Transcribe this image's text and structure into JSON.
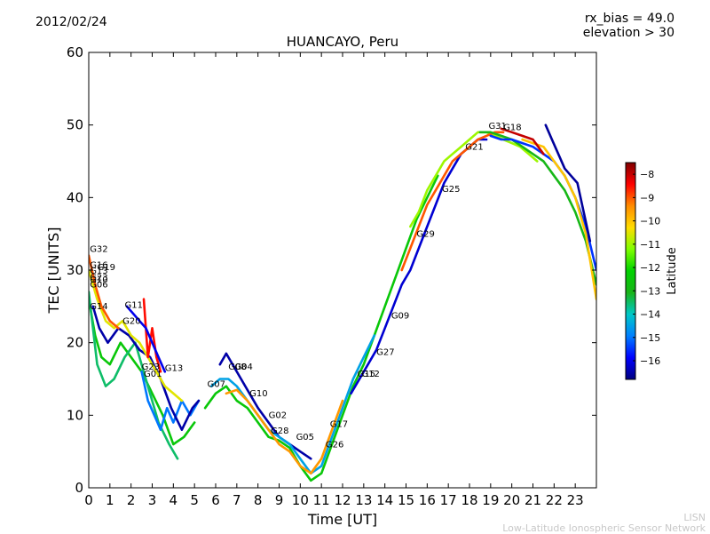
{
  "header": {
    "date": "2012/02/24",
    "rx_bias": "rx_bias = 49.0",
    "elevation": "elevation > 30"
  },
  "footer": {
    "line1": "LISN",
    "line2": "Low-Latitude Ionospheric Sensor Network"
  },
  "chart_data": {
    "type": "scatter",
    "title": "HUANCAYO, Peru",
    "xlabel": "Time [UT]",
    "ylabel": "TEC [UNITS]",
    "xlim": [
      0,
      24
    ],
    "ylim": [
      0,
      60
    ],
    "xticks": [
      "0",
      "1",
      "2",
      "3",
      "4",
      "5",
      "6",
      "7",
      "8",
      "9",
      "10",
      "11",
      "12",
      "13",
      "14",
      "15",
      "16",
      "17",
      "18",
      "19",
      "20",
      "21",
      "22",
      "23"
    ],
    "yticks": [
      "0",
      "10",
      "20",
      "30",
      "40",
      "50",
      "60"
    ],
    "colorbar": {
      "label": "Latitude",
      "range": [
        -16.8,
        -7.5
      ],
      "ticks": [
        "-8",
        "-9",
        "-10",
        "-11",
        "-12",
        "-13",
        "-14",
        "-15",
        "-16"
      ],
      "tick_values": [
        -8,
        -9,
        -10,
        -11,
        -12,
        -13,
        -14,
        -15,
        -16
      ],
      "colors": [
        "#00007f",
        "#0000ff",
        "#007fff",
        "#00c8c8",
        "#19b419",
        "#00d200",
        "#7fff00",
        "#ffdd00",
        "#ff8c00",
        "#ff0000",
        "#7f0000"
      ]
    },
    "series": [
      {
        "lat": -12.5,
        "x": [
          0,
          0.3,
          0.6,
          1.0,
          1.5,
          2.0,
          2.5,
          3.0,
          3.5,
          4.0,
          4.5,
          5.0
        ],
        "y": [
          26,
          21,
          18,
          17,
          20,
          18,
          16,
          13,
          10,
          6,
          7,
          9
        ]
      },
      {
        "lat": -13.5,
        "x": [
          0,
          0.4,
          0.8,
          1.2,
          1.7,
          2.2,
          2.8,
          3.3,
          3.8,
          4.2
        ],
        "y": [
          27,
          17,
          14,
          15,
          18,
          20,
          14,
          9,
          6,
          4
        ]
      },
      {
        "lat": -15.0,
        "x": [
          2.5,
          2.8,
          3.1,
          3.4,
          3.7,
          4.0,
          4.4,
          4.8,
          5.2
        ],
        "y": [
          16,
          12,
          10,
          8,
          11,
          9,
          12,
          10,
          12
        ]
      },
      {
        "lat": -16.5,
        "x": [
          0.2,
          0.5,
          0.9,
          1.4,
          1.9,
          2.4,
          2.9,
          3.4,
          3.9,
          4.4,
          4.9,
          5.2
        ],
        "y": [
          25,
          22,
          20,
          22,
          21,
          19,
          18,
          15,
          11,
          8,
          11,
          12
        ]
      },
      {
        "lat": -10.5,
        "x": [
          0,
          0.4,
          0.8,
          1.2,
          1.6,
          2.0,
          2.4,
          2.8,
          3.2,
          3.6,
          4.0,
          4.4
        ],
        "y": [
          30,
          26,
          23,
          22,
          23,
          21,
          20,
          18,
          16,
          14,
          13,
          12
        ]
      },
      {
        "lat": -8.5,
        "x": [
          2.6,
          2.8,
          3.0,
          3.2,
          3.4
        ],
        "y": [
          26,
          18,
          22,
          18,
          16
        ]
      },
      {
        "lat": -9.0,
        "x": [
          0,
          0.3,
          0.6,
          1.0,
          1.4
        ],
        "y": [
          32,
          28,
          25,
          23,
          22
        ]
      },
      {
        "lat": -16.0,
        "x": [
          1.8,
          2.1,
          2.4,
          2.7,
          3.0,
          3.3,
          3.6
        ],
        "y": [
          25,
          24,
          23,
          22,
          20,
          18,
          16
        ]
      },
      {
        "lat": -12.5,
        "x": [
          5.5,
          6.0,
          6.5,
          7.0,
          7.5,
          8.0,
          8.5,
          9.0,
          9.5,
          10.0,
          10.5,
          11.0,
          11.5,
          12.0,
          12.5,
          13.0,
          13.5,
          14.0,
          14.5,
          15.0,
          15.5,
          16.0,
          16.5
        ],
        "y": [
          11,
          13,
          14,
          12,
          11,
          9,
          7,
          6.5,
          5.5,
          3,
          1,
          2,
          6,
          10,
          14,
          17,
          21,
          25,
          29,
          33,
          37,
          40,
          43
        ]
      },
      {
        "lat": -16.5,
        "x": [
          6.2,
          6.5,
          6.8,
          7.2,
          7.6,
          8.0,
          8.5,
          9.0,
          9.5,
          10.0,
          10.5
        ],
        "y": [
          17,
          18.5,
          17,
          15,
          13,
          11,
          9,
          7,
          6,
          5,
          4
        ]
      },
      {
        "lat": -14.5,
        "x": [
          5.8,
          6.2,
          6.6,
          7.0,
          7.5,
          8.0,
          8.5,
          9.0,
          9.5,
          10.0,
          10.5,
          11.0,
          11.5,
          12.0,
          12.5,
          13.0,
          13.5
        ],
        "y": [
          14,
          15,
          15,
          14,
          12,
          10,
          8,
          7,
          6,
          4,
          2,
          3,
          7,
          11,
          15,
          18,
          21
        ]
      },
      {
        "lat": -9.5,
        "x": [
          6.5,
          7.0,
          7.5,
          8.0,
          8.5,
          9.0,
          9.5,
          10.0,
          10.5,
          11.0,
          11.5,
          12.0
        ],
        "y": [
          13,
          13.5,
          12,
          10,
          8,
          6,
          5,
          3,
          2,
          4,
          8,
          12
        ]
      },
      {
        "lat": -11.0,
        "x": [
          15.2,
          15.6,
          16.0,
          16.4,
          16.8,
          17.2,
          17.6,
          18.0,
          18.4,
          18.8,
          19.2,
          19.6,
          20.0,
          20.4,
          20.8,
          21.2
        ],
        "y": [
          36,
          38,
          41,
          43,
          45,
          46,
          47,
          48,
          49,
          49,
          48.5,
          48,
          47.5,
          47,
          46,
          45
        ]
      },
      {
        "lat": -16.2,
        "x": [
          12.4,
          12.8,
          13.2,
          13.6,
          14.0,
          14.4,
          14.8,
          15.2,
          15.6,
          16.0,
          16.4,
          16.8,
          17.2,
          17.6,
          18.0,
          18.4,
          18.8
        ],
        "y": [
          13,
          15,
          17,
          19,
          22,
          25,
          28,
          30,
          33,
          36,
          39,
          42,
          44,
          46,
          47,
          48,
          48
        ]
      },
      {
        "lat": -9.0,
        "x": [
          14.8,
          15.2,
          15.6,
          16.0,
          16.4,
          16.8,
          17.2,
          17.6,
          18.0,
          18.4,
          18.8,
          19.2,
          19.6
        ],
        "y": [
          30,
          33,
          36,
          39,
          41,
          43,
          45,
          46,
          47,
          48,
          48.5,
          49,
          49
        ]
      },
      {
        "lat": -13.0,
        "x": [
          18.5,
          19.0,
          19.5,
          20.0,
          20.5,
          21.0,
          21.5,
          22.0,
          22.5,
          23.0,
          23.5,
          24.0
        ],
        "y": [
          49,
          49,
          48.5,
          48,
          47,
          46,
          45,
          43,
          41,
          38,
          34,
          28
        ]
      },
      {
        "lat": -15.5,
        "x": [
          19.0,
          19.5,
          20.0,
          20.5,
          21.0,
          21.5,
          22.0,
          22.5,
          23.0,
          23.5,
          24.0
        ],
        "y": [
          48.5,
          48,
          48,
          47.5,
          47,
          46,
          45,
          43,
          40,
          36,
          30
        ]
      },
      {
        "lat": -10.0,
        "x": [
          20.5,
          21.0,
          21.5,
          22.0,
          22.5,
          23.0,
          23.5,
          24.0
        ],
        "y": [
          48,
          47.5,
          47,
          45,
          43,
          40,
          35,
          26
        ]
      },
      {
        "lat": -16.6,
        "x": [
          21.6,
          21.9,
          22.2,
          22.5,
          22.8,
          23.1,
          23.4,
          23.7
        ],
        "y": [
          50,
          48,
          46,
          44,
          43,
          42,
          38,
          34
        ]
      },
      {
        "lat": -8.0,
        "x": [
          19.5,
          20.0,
          20.5,
          21.0,
          21.5
        ],
        "y": [
          49.5,
          49,
          48.5,
          48,
          46
        ]
      }
    ],
    "prn_labels": [
      {
        "text": "G32",
        "x": 0.05,
        "y": 32.5
      },
      {
        "text": "G16",
        "x": 0.05,
        "y": 30.3
      },
      {
        "text": "G19",
        "x": 0.4,
        "y": 30.0
      },
      {
        "text": "G13",
        "x": 0.05,
        "y": 29.5
      },
      {
        "text": "G23",
        "x": 0.05,
        "y": 28.6
      },
      {
        "text": "G10",
        "x": 0.05,
        "y": 28.3
      },
      {
        "text": "G06",
        "x": 0.05,
        "y": 27.6
      },
      {
        "text": "G14",
        "x": 0.05,
        "y": 24.6
      },
      {
        "text": "G11",
        "x": 1.7,
        "y": 24.8
      },
      {
        "text": "G20",
        "x": 1.6,
        "y": 22.6
      },
      {
        "text": "G23",
        "x": 2.5,
        "y": 16.3
      },
      {
        "text": "G01",
        "x": 2.6,
        "y": 15.3
      },
      {
        "text": "G13",
        "x": 3.6,
        "y": 16.1
      },
      {
        "text": "G07",
        "x": 5.6,
        "y": 13.9
      },
      {
        "text": "G08",
        "x": 6.6,
        "y": 16.3
      },
      {
        "text": "G04",
        "x": 6.9,
        "y": 16.3
      },
      {
        "text": "G10",
        "x": 7.6,
        "y": 12.6
      },
      {
        "text": "G02",
        "x": 8.5,
        "y": 9.6
      },
      {
        "text": "G28",
        "x": 8.6,
        "y": 7.5
      },
      {
        "text": "G05",
        "x": 9.8,
        "y": 6.6
      },
      {
        "text": "G17",
        "x": 11.4,
        "y": 8.4
      },
      {
        "text": "G26",
        "x": 11.2,
        "y": 5.6
      },
      {
        "text": "G15",
        "x": 12.7,
        "y": 15.3
      },
      {
        "text": "G12",
        "x": 12.9,
        "y": 15.3
      },
      {
        "text": "G27",
        "x": 13.6,
        "y": 18.3
      },
      {
        "text": "G09",
        "x": 14.3,
        "y": 23.3
      },
      {
        "text": "G29",
        "x": 15.5,
        "y": 34.6
      },
      {
        "text": "G25",
        "x": 16.7,
        "y": 40.8
      },
      {
        "text": "G21",
        "x": 17.8,
        "y": 46.6
      },
      {
        "text": "G31",
        "x": 18.9,
        "y": 49.5
      },
      {
        "text": "G18",
        "x": 19.6,
        "y": 49.3
      }
    ]
  }
}
